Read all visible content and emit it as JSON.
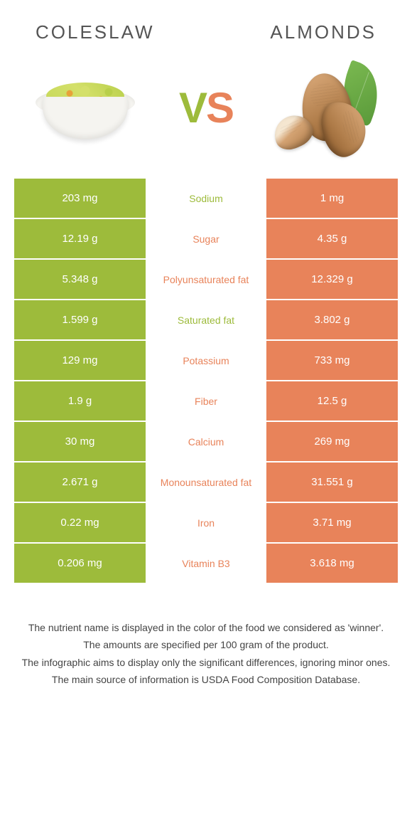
{
  "colors": {
    "left": "#9dbb3b",
    "right": "#e8835a",
    "row_gap": "#ffffff",
    "text": "#333333",
    "header_text": "#555555"
  },
  "header": {
    "left_title": "COLESLAW",
    "right_title": "ALMONDS",
    "vs_v": "V",
    "vs_s": "S"
  },
  "table": {
    "left_bg": "#9dbb3b",
    "right_bg": "#e8835a",
    "rows": [
      {
        "left": "203 mg",
        "label": "Sodium",
        "right": "1 mg",
        "winner": "left"
      },
      {
        "left": "12.19 g",
        "label": "Sugar",
        "right": "4.35 g",
        "winner": "right"
      },
      {
        "left": "5.348 g",
        "label": "Polyunsaturated fat",
        "right": "12.329 g",
        "winner": "right"
      },
      {
        "left": "1.599 g",
        "label": "Saturated fat",
        "right": "3.802 g",
        "winner": "left"
      },
      {
        "left": "129 mg",
        "label": "Potassium",
        "right": "733 mg",
        "winner": "right"
      },
      {
        "left": "1.9 g",
        "label": "Fiber",
        "right": "12.5 g",
        "winner": "right"
      },
      {
        "left": "30 mg",
        "label": "Calcium",
        "right": "269 mg",
        "winner": "right"
      },
      {
        "left": "2.671 g",
        "label": "Monounsaturated fat",
        "right": "31.551 g",
        "winner": "right"
      },
      {
        "left": "0.22 mg",
        "label": "Iron",
        "right": "3.71 mg",
        "winner": "right"
      },
      {
        "left": "0.206 mg",
        "label": "Vitamin B3",
        "right": "3.618 mg",
        "winner": "right"
      }
    ]
  },
  "footer": {
    "line1": "The nutrient name is displayed in the color of the food we considered as 'winner'.",
    "line2": "The amounts are specified per 100 gram of the product.",
    "line3": "The infographic aims to display only the significant differences, ignoring minor ones.",
    "line4": "The main source of information is USDA Food Composition Database."
  }
}
